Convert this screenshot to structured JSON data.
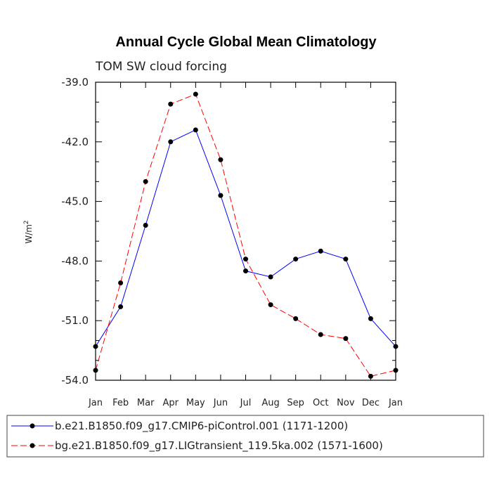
{
  "chart_data": {
    "type": "line",
    "title": "Annual Cycle Global Mean Climatology",
    "subtitle": "TOM SW cloud forcing",
    "ylabel_base": "W/m",
    "ylabel_exp": "2",
    "ylim": [
      -54.0,
      -39.0
    ],
    "yticks": [
      "-39.0",
      "-42.0",
      "-45.0",
      "-48.0",
      "-51.0",
      "-54.0"
    ],
    "ytick_values": [
      -39.0,
      -42.0,
      -45.0,
      -48.0,
      -51.0,
      -54.0
    ],
    "categories": [
      "Jan",
      "Feb",
      "Mar",
      "Apr",
      "May",
      "Jun",
      "Jul",
      "Aug",
      "Sep",
      "Oct",
      "Nov",
      "Dec",
      "Jan"
    ],
    "series": [
      {
        "name": "b.e21.B1850.f09_g17.CMIP6-piControl.001 (1171-1200)",
        "color": "#0000ff",
        "dash": "solid",
        "values": [
          -52.3,
          -50.3,
          -46.2,
          -42.0,
          -41.4,
          -44.7,
          -48.5,
          -48.8,
          -47.9,
          -47.5,
          -47.9,
          -50.9,
          -52.3
        ]
      },
      {
        "name": "bg.e21.B1850.f09_g17.LIGtransient_119.5ka.002 (1571-1600)",
        "color": "#ff0000",
        "dash": "dashed",
        "values": [
          -53.5,
          -49.1,
          -44.0,
          -40.1,
          -39.6,
          -42.9,
          -47.9,
          -50.2,
          -50.9,
          -51.7,
          -51.9,
          -53.8,
          -53.5
        ]
      }
    ]
  }
}
